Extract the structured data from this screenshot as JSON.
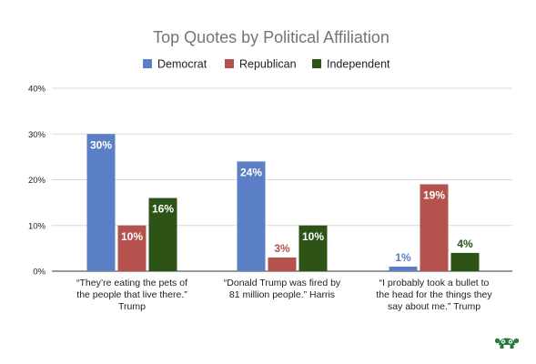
{
  "chart_data": {
    "type": "bar",
    "title": "Top Quotes by Political Affiliation",
    "categories": [
      [
        "“They’re eating the pets of",
        "the people that live there.”",
        "Trump"
      ],
      [
        "“Donald Trump was fired by",
        "81 million people.”  Harris"
      ],
      [
        "“I probably took a bullet to",
        "the head for the things they",
        "say about me.”  Trump"
      ]
    ],
    "series": [
      {
        "name": "Democrat",
        "color": "#5b7fc4",
        "values": [
          30,
          24,
          1
        ],
        "labels": [
          "30%",
          "24%",
          "1%"
        ]
      },
      {
        "name": "Republican",
        "color": "#b5524d",
        "values": [
          10,
          3,
          19
        ],
        "labels": [
          "10%",
          "3%",
          "19%"
        ]
      },
      {
        "name": "Independent",
        "color": "#2d5416",
        "values": [
          16,
          10,
          4
        ],
        "labels": [
          "16%",
          "10%",
          "4%"
        ]
      }
    ],
    "ylim": [
      0,
      40
    ],
    "yticks": [
      {
        "value": 0,
        "label": "0%"
      },
      {
        "value": 10,
        "label": "10%"
      },
      {
        "value": 20,
        "label": "20%"
      },
      {
        "value": 30,
        "label": "30%"
      },
      {
        "value": 40,
        "label": "40%"
      }
    ],
    "grid": true,
    "legend_position": "top-center",
    "xlabel": "",
    "ylabel": ""
  },
  "logo": {
    "name": "brand-logo-icon",
    "color": "#2d7a3e"
  }
}
